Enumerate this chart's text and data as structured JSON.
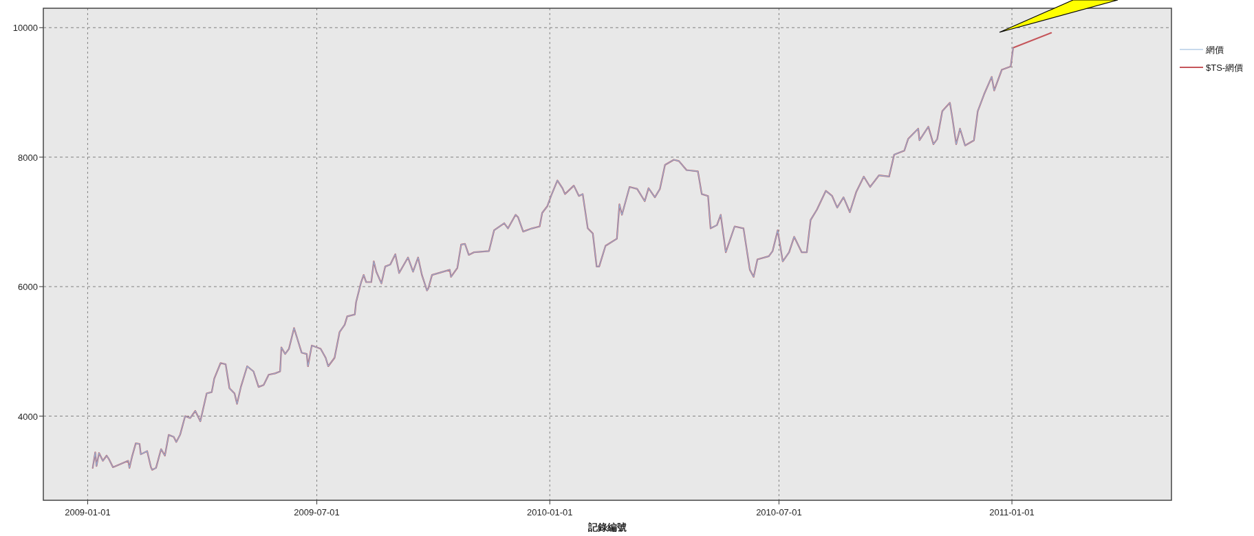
{
  "chart_data": {
    "type": "line",
    "xlabel": "記錄編號",
    "x": [
      "2009-01-05",
      "2009-01-07",
      "2009-01-08",
      "2009-01-10",
      "2009-01-13",
      "2009-01-16",
      "2009-01-18",
      "2009-01-21",
      "2009-02-02",
      "2009-02-03",
      "2009-02-05",
      "2009-02-08",
      "2009-02-11",
      "2009-02-12",
      "2009-02-17",
      "2009-02-20",
      "2009-02-21",
      "2009-02-24",
      "2009-02-28",
      "2009-03-03",
      "2009-03-06",
      "2009-03-10",
      "2009-03-12",
      "2009-03-15",
      "2009-03-19",
      "2009-03-23",
      "2009-03-27",
      "2009-03-31",
      "2009-04-05",
      "2009-04-09",
      "2009-04-11",
      "2009-04-16",
      "2009-04-20",
      "2009-04-23",
      "2009-04-27",
      "2009-04-29",
      "2009-05-02",
      "2009-05-07",
      "2009-05-12",
      "2009-05-16",
      "2009-05-20",
      "2009-05-24",
      "2009-05-29",
      "2009-06-02",
      "2009-06-03",
      "2009-06-06",
      "2009-06-09",
      "2009-06-13",
      "2009-06-16",
      "2009-06-19",
      "2009-06-23",
      "2009-06-24",
      "2009-06-27",
      "2009-07-04",
      "2009-07-08",
      "2009-07-10",
      "2009-07-15",
      "2009-07-19",
      "2009-07-23",
      "2009-07-25",
      "2009-07-31",
      "2009-08-01",
      "2009-08-05",
      "2009-08-07",
      "2009-08-09",
      "2009-08-13",
      "2009-08-15",
      "2009-08-17",
      "2009-08-21",
      "2009-08-24",
      "2009-08-28",
      "2009-09-01",
      "2009-09-04",
      "2009-09-11",
      "2009-09-15",
      "2009-09-19",
      "2009-09-22",
      "2009-09-26",
      "2009-09-27",
      "2009-09-30",
      "2009-10-14",
      "2009-10-15",
      "2009-10-20",
      "2009-10-23",
      "2009-10-26",
      "2009-10-29",
      "2009-11-02",
      "2009-11-14",
      "2009-11-18",
      "2009-11-26",
      "2009-11-29",
      "2009-12-05",
      "2009-12-07",
      "2009-12-11",
      "2009-12-18",
      "2009-12-24",
      "2009-12-26",
      "2009-12-30",
      "2010-01-02",
      "2010-01-07",
      "2010-01-11",
      "2010-01-13",
      "2010-01-20",
      "2010-01-24",
      "2010-01-27",
      "2010-01-31",
      "2010-02-04",
      "2010-02-07",
      "2010-02-09",
      "2010-02-14",
      "2010-02-23",
      "2010-02-25",
      "2010-02-27",
      "2010-03-05",
      "2010-03-11",
      "2010-03-17",
      "2010-03-20",
      "2010-03-25",
      "2010-03-29",
      "2010-04-02",
      "2010-04-09",
      "2010-04-13",
      "2010-04-19",
      "2010-04-28",
      "2010-05-01",
      "2010-05-06",
      "2010-05-08",
      "2010-05-13",
      "2010-05-16",
      "2010-05-20",
      "2010-05-27",
      "2010-06-03",
      "2010-06-08",
      "2010-06-11",
      "2010-06-14",
      "2010-06-23",
      "2010-06-26",
      "2010-06-30",
      "2010-07-04",
      "2010-07-09",
      "2010-07-13",
      "2010-07-19",
      "2010-07-23",
      "2010-07-26",
      "2010-07-31",
      "2010-08-07",
      "2010-08-12",
      "2010-08-16",
      "2010-08-21",
      "2010-08-26",
      "2010-08-31",
      "2010-09-06",
      "2010-09-11",
      "2010-09-18",
      "2010-09-26",
      "2010-09-30",
      "2010-10-08",
      "2010-10-11",
      "2010-10-19",
      "2010-10-20",
      "2010-10-27",
      "2010-10-31",
      "2010-11-03",
      "2010-11-07",
      "2010-11-13",
      "2010-11-15",
      "2010-11-18",
      "2010-11-21",
      "2010-11-25",
      "2010-12-02",
      "2010-12-05",
      "2010-12-10",
      "2010-12-16",
      "2010-12-18",
      "2010-12-24",
      "2010-12-31",
      "2011-01-02",
      "2011-02-01"
    ],
    "series": [
      {
        "name": "網價",
        "color": "#8fb4d9",
        "values": [
          3200,
          3440,
          3230,
          3430,
          3310,
          3390,
          3330,
          3210,
          3310,
          3200,
          3370,
          3580,
          3570,
          3410,
          3460,
          3210,
          3170,
          3200,
          3490,
          3390,
          3710,
          3680,
          3600,
          3710,
          4000,
          3970,
          4080,
          3920,
          4350,
          4370,
          4580,
          4820,
          4800,
          4430,
          4350,
          4190,
          4450,
          4770,
          4690,
          4450,
          4480,
          4640,
          4660,
          4690,
          5060,
          4960,
          5040,
          5360,
          5170,
          4980,
          4960,
          4770,
          5090,
          5040,
          4900,
          4770,
          4900,
          5300,
          5410,
          5540,
          5570,
          5760,
          6070,
          6180,
          6070,
          6070,
          6390,
          6230,
          6050,
          6310,
          6340,
          6500,
          6210,
          6450,
          6230,
          6450,
          6180,
          5940,
          5970,
          6180,
          6260,
          6150,
          6290,
          6650,
          6660,
          6490,
          6530,
          6550,
          6870,
          6980,
          6900,
          7110,
          7070,
          6850,
          6900,
          6930,
          7140,
          7240,
          7400,
          7640,
          7520,
          7430,
          7560,
          7400,
          7430,
          6900,
          6820,
          6310,
          6310,
          6630,
          6740,
          7270,
          7110,
          7540,
          7510,
          7320,
          7520,
          7380,
          7510,
          7880,
          7960,
          7940,
          7800,
          7780,
          7430,
          7400,
          6900,
          6950,
          7110,
          6530,
          6930,
          6900,
          6260,
          6150,
          6420,
          6470,
          6550,
          6870,
          6390,
          6530,
          6770,
          6530,
          6530,
          7030,
          7190,
          7480,
          7400,
          7220,
          7380,
          7150,
          7460,
          7700,
          7540,
          7720,
          7700,
          8040,
          8100,
          8280,
          8440,
          8260,
          8470,
          8200,
          8280,
          8710,
          8840,
          8600,
          8200,
          8440,
          8180,
          8260,
          8710,
          8970,
          9240,
          9030,
          9350,
          9400,
          9690,
          null
        ]
      },
      {
        "name": "$TS-網價",
        "color": "#c5555a",
        "values": [
          3200,
          3440,
          3230,
          3430,
          3310,
          3390,
          3330,
          3210,
          3310,
          3200,
          3370,
          3580,
          3570,
          3410,
          3460,
          3210,
          3170,
          3200,
          3490,
          3390,
          3710,
          3680,
          3600,
          3710,
          4000,
          3970,
          4080,
          3920,
          4350,
          4370,
          4580,
          4820,
          4800,
          4430,
          4350,
          4190,
          4450,
          4770,
          4690,
          4450,
          4480,
          4640,
          4660,
          4690,
          5060,
          4960,
          5040,
          5360,
          5170,
          4980,
          4960,
          4770,
          5090,
          5040,
          4900,
          4770,
          4900,
          5300,
          5410,
          5540,
          5570,
          5760,
          6070,
          6180,
          6070,
          6070,
          6390,
          6230,
          6050,
          6310,
          6340,
          6500,
          6210,
          6450,
          6230,
          6450,
          6180,
          5940,
          5970,
          6180,
          6260,
          6150,
          6290,
          6650,
          6660,
          6490,
          6530,
          6550,
          6870,
          6980,
          6900,
          7110,
          7070,
          6850,
          6900,
          6930,
          7140,
          7240,
          7400,
          7640,
          7520,
          7430,
          7560,
          7400,
          7430,
          6900,
          6820,
          6310,
          6310,
          6630,
          6740,
          7270,
          7110,
          7540,
          7510,
          7320,
          7520,
          7380,
          7510,
          7880,
          7960,
          7940,
          7800,
          7780,
          7430,
          7400,
          6900,
          6950,
          7110,
          6530,
          6930,
          6900,
          6260,
          6150,
          6420,
          6470,
          6550,
          6870,
          6390,
          6530,
          6770,
          6530,
          6530,
          7030,
          7190,
          7480,
          7400,
          7220,
          7380,
          7150,
          7460,
          7700,
          7540,
          7720,
          7700,
          8040,
          8100,
          8280,
          8440,
          8260,
          8470,
          8200,
          8280,
          8710,
          8840,
          8600,
          8200,
          8440,
          8180,
          8260,
          8710,
          8970,
          9240,
          9030,
          9350,
          9400,
          9690,
          9920
        ]
      }
    ],
    "xlim": [
      "2008-11-27",
      "2011-05-07"
    ],
    "xticks": [
      "2009-01-01",
      "2009-07-01",
      "2010-01-01",
      "2010-07-01",
      "2011-01-01"
    ],
    "ylim": [
      2700,
      10300
    ],
    "yticks": [
      4000,
      6000,
      8000,
      10000
    ],
    "grid": true,
    "legend": "right",
    "line_style": "solid"
  }
}
